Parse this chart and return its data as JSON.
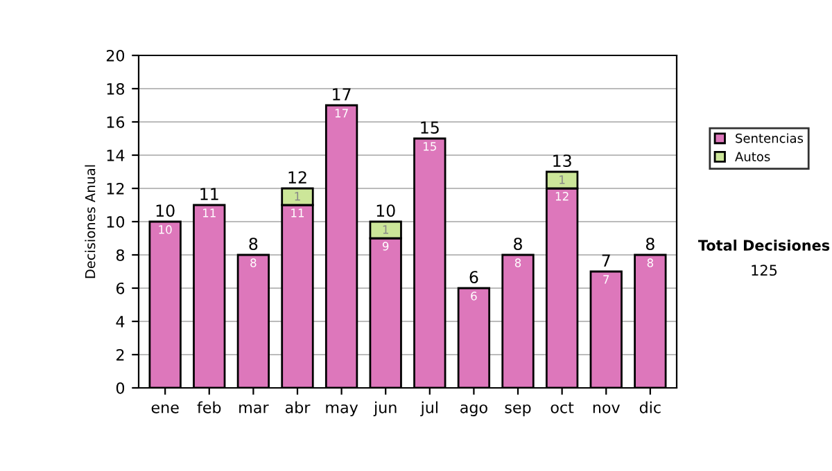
{
  "chart_data": {
    "type": "bar",
    "stacked": true,
    "ylabel": "Decisiones Anual",
    "categories": [
      "ene",
      "feb",
      "mar",
      "abr",
      "may",
      "jun",
      "jul",
      "ago",
      "sep",
      "oct",
      "nov",
      "dic"
    ],
    "series": [
      {
        "name": "Sentencias",
        "color": "#dd77bb",
        "values": [
          10,
          11,
          8,
          11,
          17,
          9,
          15,
          6,
          8,
          12,
          7,
          8
        ],
        "value_labels": [
          "10",
          "11",
          "8",
          "11",
          "17",
          "9",
          "15",
          "6",
          "8",
          "12",
          "7",
          "8"
        ]
      },
      {
        "name": "Autos",
        "color": "#cce699",
        "values": [
          null,
          null,
          null,
          1,
          null,
          1,
          null,
          null,
          null,
          1,
          null,
          null
        ],
        "value_labels": [
          null,
          null,
          null,
          "1",
          null,
          "1",
          null,
          null,
          null,
          "1",
          null,
          null
        ]
      }
    ],
    "totals": [
      "10",
      "11",
      "8",
      "12",
      "17",
      "10",
      "15",
      "6",
      "8",
      "13",
      "7",
      "8"
    ],
    "ylim": [
      0,
      20
    ],
    "yticks": [
      0,
      2,
      4,
      6,
      8,
      10,
      12,
      14,
      16,
      18,
      20
    ],
    "grid": "y",
    "legend": "right",
    "annotations": [
      "Total Decisiones",
      "125"
    ]
  }
}
